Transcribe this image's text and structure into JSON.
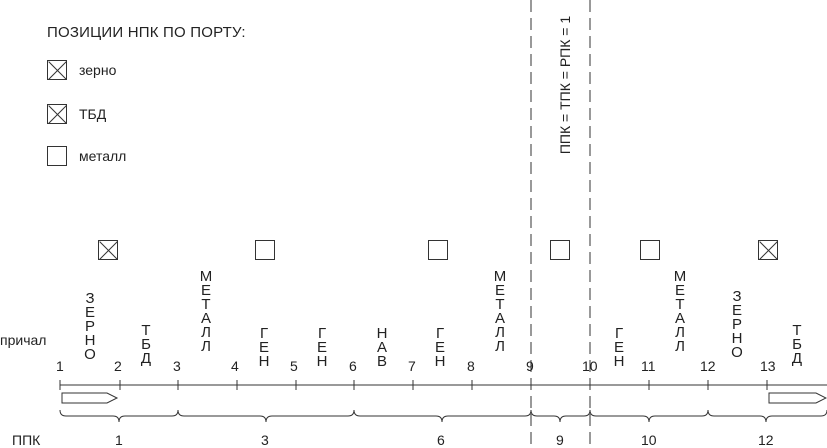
{
  "legend": {
    "title": "ПОЗИЦИИ НПК ПО ПОРТУ:",
    "items": [
      {
        "label": "зерно",
        "marker": "crossed-box"
      },
      {
        "label": "ТБД",
        "marker": "crossed-box"
      },
      {
        "label": "металл",
        "marker": "empty-box"
      }
    ]
  },
  "rotated_label": "ППК = ТПК = РПК = 1",
  "row_labels": {
    "berth": "причал",
    "ppk": "ППК"
  },
  "berth_numbers": [
    "1",
    "2",
    "3",
    "4",
    "5",
    "6",
    "7",
    "8",
    "9",
    "10",
    "11",
    "12",
    "13"
  ],
  "cargo_words": [
    {
      "text": "ЗЕРНО"
    },
    {
      "text": "ТБД"
    },
    {
      "text": "МЕТАЛЛ"
    },
    {
      "text": "ГЕН"
    },
    {
      "text": "ГЕН"
    },
    {
      "text": "НАВ"
    },
    {
      "text": "ГЕН"
    },
    {
      "text": "МЕТАЛЛ"
    },
    {
      "text": "ГЕН"
    },
    {
      "text": "МЕТАЛЛ"
    },
    {
      "text": "ЗЕРНО"
    },
    {
      "text": "ТБД"
    }
  ],
  "position_markers": [
    {
      "type": "crossed"
    },
    {
      "type": "empty"
    },
    {
      "type": "empty"
    },
    {
      "type": "empty"
    },
    {
      "type": "empty"
    },
    {
      "type": "crossed"
    }
  ],
  "ppk_groups": [
    "1",
    "3",
    "6",
    "9",
    "10",
    "12"
  ]
}
